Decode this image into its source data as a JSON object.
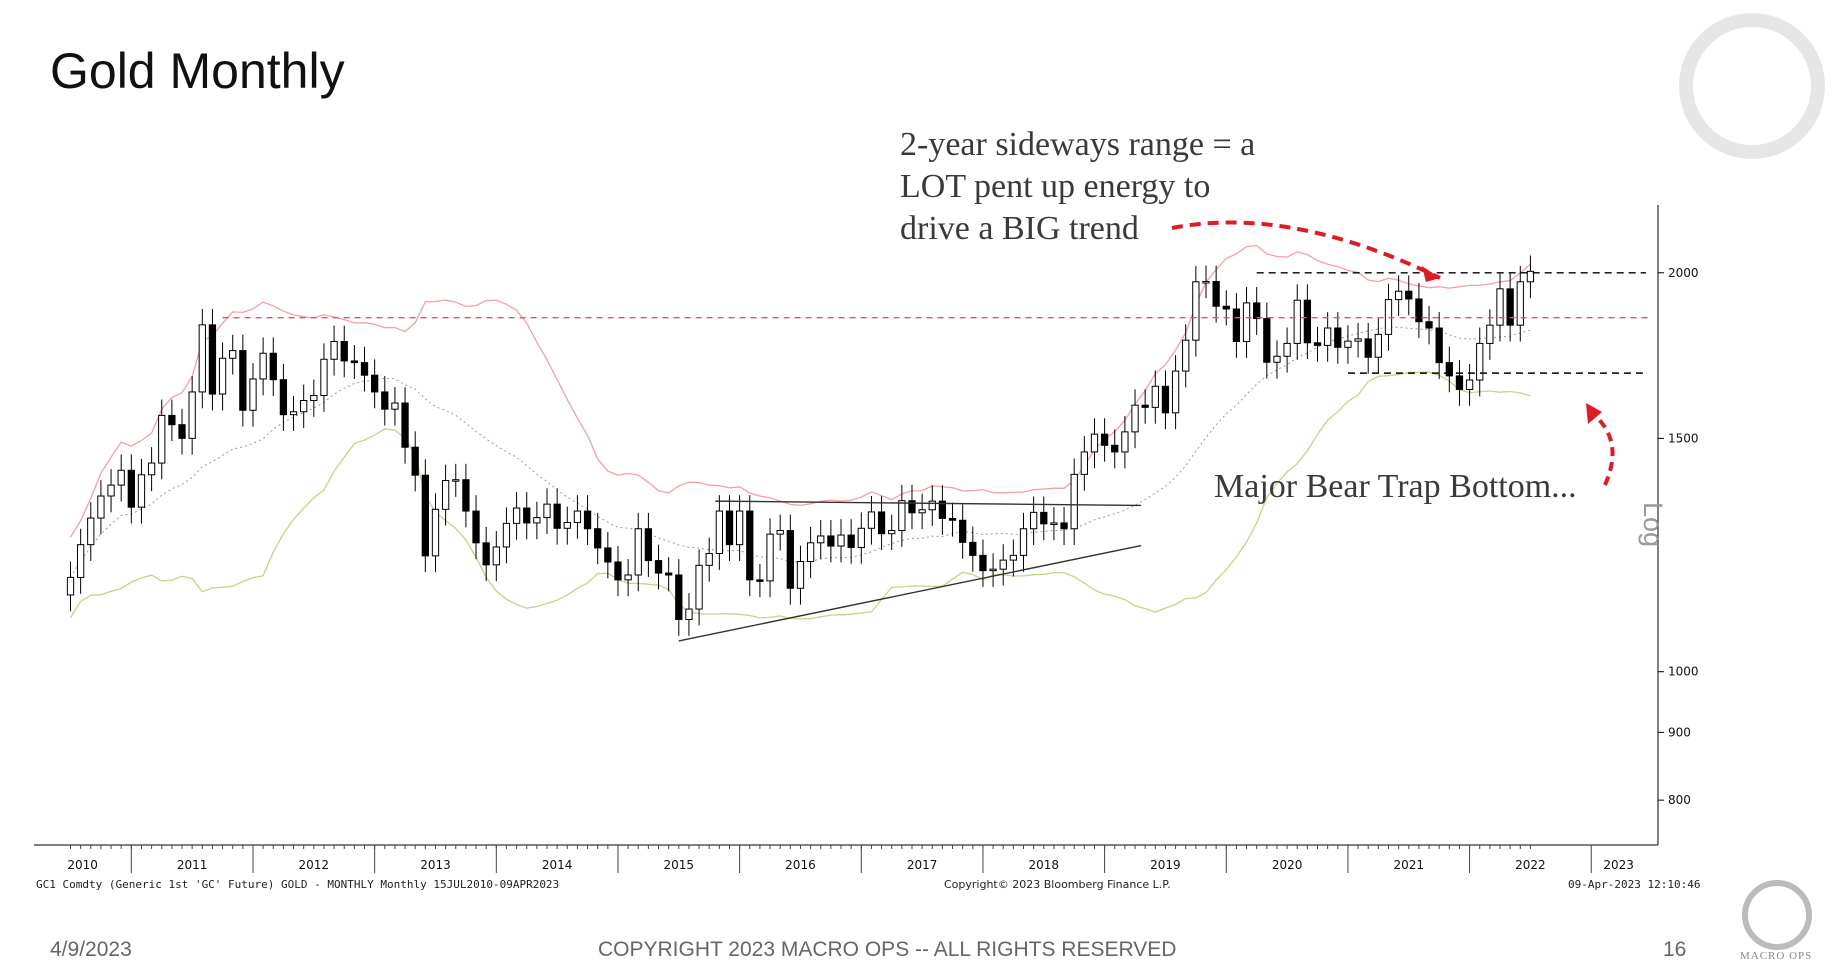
{
  "slide": {
    "title": "Gold Monthly",
    "date": "4/9/2023",
    "copyright": "COPYRIGHT 2023 MACRO OPS -- ALL RIGHTS RESERVED",
    "page_number": "16",
    "brand": "MACRO OPS"
  },
  "annotations": {
    "top_line1": "2-year sideways range =  a",
    "top_line2": "LOT pent up energy to",
    "top_line3": "drive a BIG trend",
    "bottom": "Major Bear Trap Bottom..."
  },
  "bloomberg": {
    "left": "GC1 Comdty (Generic 1st 'GC' Future) GOLD - MONTHLY  Monthly 15JUL2010-09APR2023",
    "middle": "Copyright© 2023 Bloomberg Finance L.P.",
    "right": "09-Apr-2023 12:10:46",
    "scale": "Log"
  },
  "colors": {
    "up_candle": "#ffffff",
    "down_candle": "#000000",
    "upper_band": "#f4a0a8",
    "lower_band": "#bcd88a",
    "middle_band": "#9a9a9a",
    "resistance_dashed": "#e05567",
    "range_dashed": "#000000",
    "arrow": "#e01b24"
  },
  "chart_data": {
    "type": "candlestick",
    "title": "Gold Monthly",
    "scale": "log",
    "ylim": [
      740,
      2250
    ],
    "y_ticks": [
      800,
      900,
      1000,
      1500,
      2000
    ],
    "x_tick_labels": [
      "2010",
      "2011",
      "2012",
      "2013",
      "2014",
      "2015",
      "2016",
      "2017",
      "2018",
      "2019",
      "2020",
      "2021",
      "2022",
      "2023"
    ],
    "start": "2010-07",
    "series_close": [
      1178,
      1247,
      1306,
      1357,
      1383,
      1419,
      1331,
      1408,
      1437,
      1561,
      1536,
      1500,
      1626,
      1827,
      1620,
      1724,
      1747,
      1575,
      1663,
      1739,
      1661,
      1563,
      1571,
      1602,
      1616,
      1721,
      1775,
      1716,
      1711,
      1674,
      1626,
      1578,
      1595,
      1477,
      1407,
      1223,
      1326,
      1394,
      1396,
      1322,
      1251,
      1204,
      1242,
      1294,
      1329,
      1295,
      1307,
      1338,
      1283,
      1296,
      1322,
      1282,
      1240,
      1210,
      1173,
      1183,
      1282,
      1213,
      1187,
      1183,
      1095,
      1115,
      1203,
      1228,
      1322,
      1247,
      1322,
      1173,
      1171,
      1270,
      1278,
      1156,
      1211,
      1251,
      1266,
      1244,
      1268,
      1241,
      1283,
      1320,
      1271,
      1278,
      1346,
      1318,
      1325,
      1345,
      1305,
      1301,
      1252,
      1224,
      1192,
      1195,
      1214,
      1224,
      1282,
      1319,
      1293,
      1295,
      1282,
      1409,
      1465,
      1511,
      1482,
      1465,
      1517,
      1589,
      1583,
      1642,
      1568,
      1686,
      1779,
      1969,
      1970,
      1887,
      1878,
      1775,
      1898,
      1847,
      1712,
      1730,
      1769,
      1907,
      1771,
      1763,
      1817,
      1757,
      1776,
      1783,
      1727,
      1797,
      1909,
      1937,
      1911,
      1837,
      1817,
      1711,
      1672,
      1633,
      1660,
      1769,
      1826,
      1945,
      1826,
      1969,
      2005
    ],
    "upper_band_last": 1960,
    "lower_band_last": 1640,
    "resistance_level": 1850,
    "range_high": 2000,
    "range_low": 1680,
    "triangle_upper": [
      [
        2015.8,
        1345
      ],
      [
        2019.3,
        1335
      ]
    ],
    "triangle_lower": [
      [
        2015.5,
        1055
      ],
      [
        2019.3,
        1245
      ]
    ]
  }
}
